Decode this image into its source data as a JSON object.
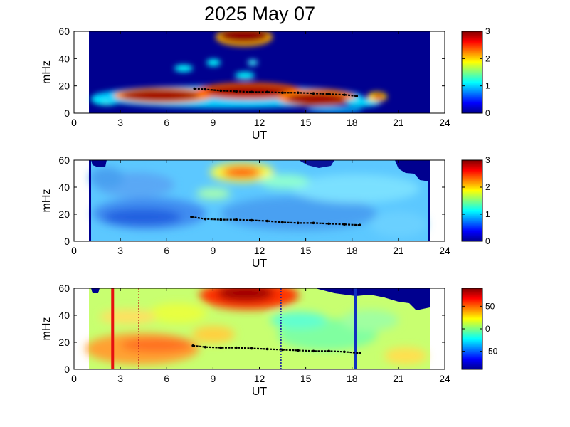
{
  "chart_data": {
    "title": "2025 May 07",
    "type": "heatmap",
    "panels": [
      {
        "id": "panel-1",
        "xlabel": "UT",
        "ylabel": "mHz",
        "xlim": [
          0,
          24
        ],
        "ylim": [
          0,
          60
        ],
        "xticks": [
          0,
          3,
          6,
          9,
          12,
          15,
          18,
          21,
          24
        ],
        "yticks": [
          0,
          20,
          40,
          60
        ],
        "data_range_ut": [
          1.0,
          23.0
        ],
        "colorbar": {
          "min": 0,
          "max": 3,
          "ticks": [
            0,
            1,
            2,
            3
          ]
        },
        "trace": [
          [
            7.8,
            18.0
          ],
          [
            8.5,
            17.5
          ],
          [
            9.5,
            16.5
          ],
          [
            10.5,
            16.0
          ],
          [
            11.5,
            15.5
          ],
          [
            12.5,
            15.5
          ],
          [
            13.5,
            15.0
          ],
          [
            14.5,
            15.0
          ],
          [
            15.5,
            14.5
          ],
          [
            16.5,
            14.0
          ],
          [
            17.5,
            13.5
          ],
          [
            18.3,
            12.5
          ]
        ]
      },
      {
        "id": "panel-2",
        "xlabel": "UT",
        "ylabel": "mHz",
        "xlim": [
          0,
          24
        ],
        "ylim": [
          0,
          60
        ],
        "xticks": [
          0,
          3,
          6,
          9,
          12,
          15,
          18,
          21,
          24
        ],
        "yticks": [
          0,
          20,
          40,
          60
        ],
        "data_range_ut": [
          1.0,
          23.0
        ],
        "colorbar": {
          "min": 0,
          "max": 3,
          "ticks": [
            0,
            1,
            2,
            3
          ]
        },
        "trace": [
          [
            7.6,
            18.0
          ],
          [
            8.5,
            16.5
          ],
          [
            9.5,
            16.0
          ],
          [
            10.5,
            16.0
          ],
          [
            11.5,
            15.5
          ],
          [
            12.5,
            15.0
          ],
          [
            13.5,
            14.0
          ],
          [
            14.5,
            13.5
          ],
          [
            15.5,
            13.5
          ],
          [
            16.5,
            13.0
          ],
          [
            17.5,
            12.5
          ],
          [
            18.5,
            12.0
          ]
        ]
      },
      {
        "id": "panel-3",
        "xlabel": "UT",
        "ylabel": "mHz",
        "xlim": [
          0,
          24
        ],
        "ylim": [
          0,
          60
        ],
        "xticks": [
          0,
          3,
          6,
          9,
          12,
          15,
          18,
          21,
          24
        ],
        "yticks": [
          0,
          20,
          40,
          60
        ],
        "data_range_ut": [
          1.0,
          23.0
        ],
        "colorbar": {
          "min": -90,
          "max": 90,
          "ticks": [
            50,
            0,
            -50
          ]
        },
        "trace": [
          [
            7.7,
            17.5
          ],
          [
            8.5,
            16.5
          ],
          [
            9.5,
            16.0
          ],
          [
            10.5,
            16.0
          ],
          [
            11.5,
            15.5
          ],
          [
            12.5,
            15.0
          ],
          [
            13.5,
            14.5
          ],
          [
            14.5,
            14.0
          ],
          [
            15.5,
            13.5
          ],
          [
            16.5,
            13.5
          ],
          [
            17.5,
            13.0
          ],
          [
            18.5,
            12.0
          ]
        ],
        "vertical_markers": [
          {
            "ut": 2.5,
            "style": "solid",
            "color": "#e61010"
          },
          {
            "ut": 4.2,
            "style": "dotted",
            "color": "#c01818"
          },
          {
            "ut": 13.4,
            "style": "dotted",
            "color": "#1820a0"
          },
          {
            "ut": 18.2,
            "style": "solid",
            "color": "#1030c0"
          }
        ]
      }
    ]
  }
}
